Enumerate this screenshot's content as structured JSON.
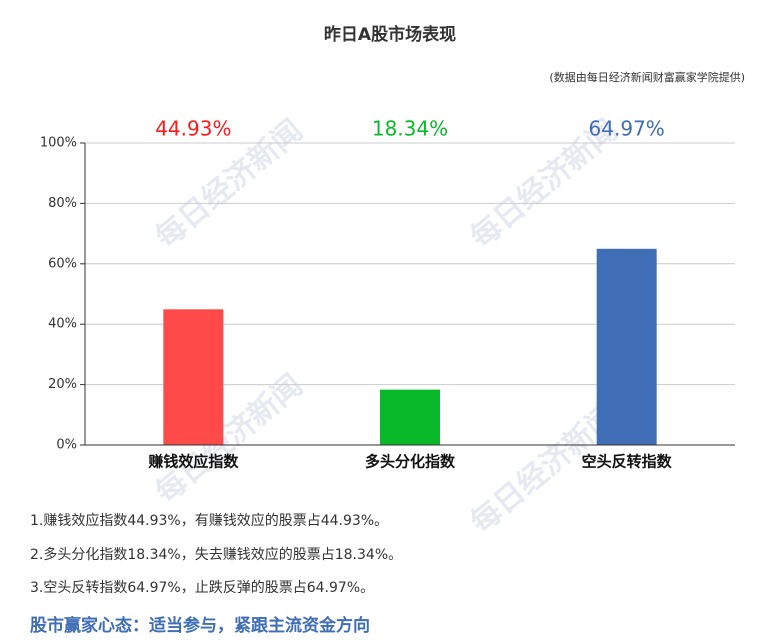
{
  "chart_data": {
    "type": "bar",
    "title": "昨日A股市场表现",
    "subtitle": "(数据由每日经济新闻财富赢家学院提供)",
    "watermark": "每日经济新闻",
    "categories": [
      "赚钱效应指数",
      "多头分化指数",
      "空头反转指数"
    ],
    "values": [
      44.93,
      18.34,
      64.97
    ],
    "value_labels": [
      "44.93%",
      "18.34%",
      "64.97%"
    ],
    "colors": [
      "#ff4a4a",
      "#0ab92a",
      "#3f6db6"
    ],
    "label_colors": [
      "#ff1a1a",
      "#0ab92a",
      "#3f6db6"
    ],
    "ylim": [
      0,
      100
    ],
    "yticks": [
      {
        "value": 0,
        "label": "0%"
      },
      {
        "value": 20,
        "label": "20%"
      },
      {
        "value": 40,
        "label": "40%"
      },
      {
        "value": 60,
        "label": "60%"
      },
      {
        "value": 80,
        "label": "80%"
      },
      {
        "value": 100,
        "label": "100%"
      }
    ],
    "grid": true
  },
  "notes": [
    "1.赚钱效应指数44.93%，有赚钱效应的股票占44.93%。",
    "2.多头分化指数18.34%，失去赚钱效应的股票占18.34%。",
    "3.空头反转指数64.97%，止跌反弹的股票占64.97%。"
  ],
  "footer": "股市赢家心态：适当参与，紧跟主流资金方向"
}
